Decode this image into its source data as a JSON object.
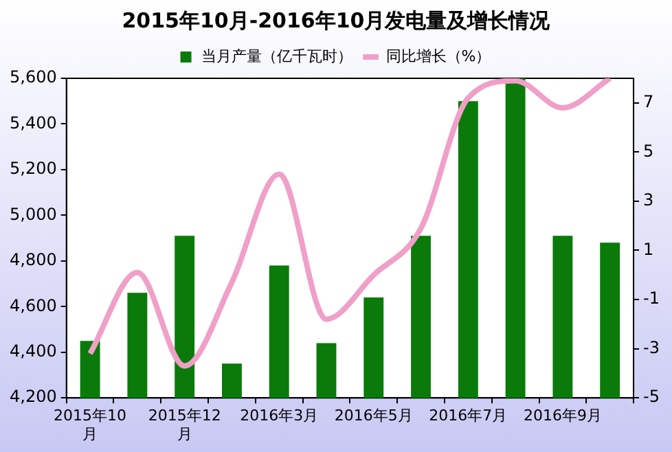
{
  "chart_data": {
    "type": "bar",
    "title": "2015年10月-2016年10月发电量及增长情况",
    "categories": [
      "2015年10月",
      null,
      "2015年12月",
      null,
      "2016年3月",
      null,
      "2016年5月",
      null,
      "2016年7月",
      null,
      "2016年9月",
      null
    ],
    "series": [
      {
        "name": "当月产量（亿千瓦时）",
        "color": "#0a7a0a",
        "values": [
          4450,
          4660,
          4910,
          4350,
          4780,
          4440,
          4640,
          4910,
          5500,
          5600,
          4910,
          4880
        ]
      },
      {
        "name": "同比增长（%）",
        "type": "line",
        "axis": "y2",
        "color": "#f0a0c8",
        "values": [
          -3.2,
          0.1,
          -3.7,
          -0.3,
          4.1,
          -1.8,
          0.0,
          1.9,
          7.2,
          7.9,
          6.8,
          8.0
        ]
      }
    ],
    "ylim": [
      4200,
      5600
    ],
    "yticks": [
      {
        "value": 4200,
        "label": "4,200"
      },
      {
        "value": 4400,
        "label": "4,400"
      },
      {
        "value": 4600,
        "label": "4,600"
      },
      {
        "value": 4800,
        "label": "4,800"
      },
      {
        "value": 5000,
        "label": "5,000"
      },
      {
        "value": 5200,
        "label": "5,200"
      },
      {
        "value": 5400,
        "label": "5,400"
      },
      {
        "value": 5600,
        "label": "5,600"
      }
    ],
    "y2lim": [
      -5,
      8
    ],
    "y2ticks": [
      -5,
      -3,
      -1,
      1,
      3,
      5,
      7
    ],
    "grid": false,
    "legend": "top",
    "marker": "none"
  }
}
